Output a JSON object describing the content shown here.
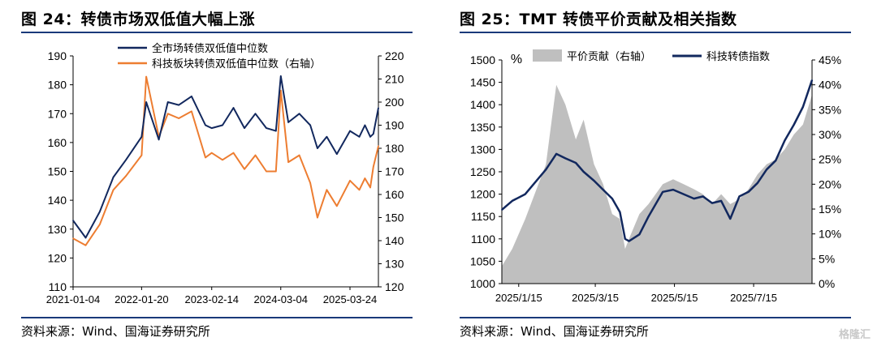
{
  "left_panel": {
    "title": "图 24：转债市场双低值大幅上涨",
    "source": "资料来源：Wind、国海证券研究所"
  },
  "right_panel": {
    "title": "图 25：TMT 转债平价贡献及相关指数",
    "source": "资料来源：Wind、国海证券研究所"
  },
  "watermark": "格隆汇",
  "chart_data": [
    {
      "type": "line",
      "title": "图 24：转债市场双低值大幅上涨",
      "x_tick_labels": [
        "2021-01-04",
        "2022-01-20",
        "2023-02-14",
        "2024-03-04",
        "2025-03-24"
      ],
      "ylim_left": [
        110,
        190
      ],
      "y_ticks_left": [
        110,
        120,
        130,
        140,
        150,
        160,
        170,
        180,
        190
      ],
      "ylim_right": [
        120,
        220
      ],
      "y_ticks_right": [
        120,
        130,
        140,
        150,
        160,
        170,
        180,
        190,
        200,
        210,
        220
      ],
      "grid": false,
      "legend_position": "top",
      "colors": {
        "series_1": "#12285e",
        "series_2": "#ed7d31"
      },
      "series": [
        {
          "name": "全市场转债双低值中位数",
          "axis": "left",
          "x": [
            "2021-01-04",
            "2021-03-15",
            "2021-06-01",
            "2021-08-16",
            "2021-10-25",
            "2022-01-20",
            "2022-02-15",
            "2022-04-26",
            "2022-06-15",
            "2022-08-15",
            "2022-10-25",
            "2023-01-10",
            "2023-02-14",
            "2023-04-15",
            "2023-06-15",
            "2023-08-15",
            "2023-10-15",
            "2023-12-15",
            "2024-02-06",
            "2024-03-04",
            "2024-04-15",
            "2024-06-15",
            "2024-08-15",
            "2024-09-24",
            "2024-11-15",
            "2025-01-10",
            "2025-03-24",
            "2025-05-15",
            "2025-06-15",
            "2025-07-15",
            "2025-08-01",
            "2025-08-29"
          ],
          "values": [
            133,
            127,
            136,
            148,
            154,
            162,
            174,
            161,
            174,
            173,
            176,
            166,
            165,
            166,
            172,
            165,
            170,
            165,
            164,
            183,
            167,
            170,
            166,
            158,
            162,
            156,
            164,
            162,
            166,
            162,
            163,
            172
          ]
        },
        {
          "name": "科技板块转债双低值中位数（右轴）",
          "axis": "right",
          "x": [
            "2021-01-04",
            "2021-03-15",
            "2021-06-01",
            "2021-08-16",
            "2021-10-25",
            "2022-01-20",
            "2022-02-15",
            "2022-04-26",
            "2022-06-15",
            "2022-08-15",
            "2022-10-25",
            "2023-01-10",
            "2023-02-14",
            "2023-04-15",
            "2023-06-15",
            "2023-08-15",
            "2023-10-15",
            "2023-12-15",
            "2024-02-06",
            "2024-03-04",
            "2024-04-15",
            "2024-06-15",
            "2024-08-15",
            "2024-09-24",
            "2024-11-15",
            "2025-01-10",
            "2025-03-24",
            "2025-05-15",
            "2025-06-15",
            "2025-07-15",
            "2025-08-01",
            "2025-08-29"
          ],
          "values": [
            141,
            138,
            147,
            162,
            168,
            177,
            211,
            185,
            195,
            193,
            196,
            176,
            178,
            175,
            178,
            171,
            177,
            170,
            170,
            205,
            174,
            177,
            165,
            150,
            162,
            155,
            166,
            162,
            167,
            163,
            172,
            181
          ]
        }
      ]
    },
    {
      "type": "line",
      "title": "图 25：TMT 转债平价贡献及相关指数",
      "x_tick_labels": [
        "2025/1/15",
        "2025/3/15",
        "2025/5/15",
        "2025/7/15"
      ],
      "ylim_left": [
        1000,
        1500
      ],
      "y_ticks_left": [
        1000,
        1050,
        1100,
        1150,
        1200,
        1250,
        1300,
        1350,
        1400,
        1450,
        1500
      ],
      "ylim_right": [
        0,
        45
      ],
      "y_ticks_right": [
        "0%",
        "5%",
        "10%",
        "15%",
        "20%",
        "25%",
        "30%",
        "35%",
        "40%",
        "45%"
      ],
      "left_axis_unit": "%",
      "grid": false,
      "legend_position": "top",
      "colors": {
        "area": "#bfbfbf",
        "line": "#12285e"
      },
      "series": [
        {
          "name": "平价贡献（右轴）",
          "type": "area",
          "axis": "right",
          "x": [
            "2025-01-02",
            "2025-01-10",
            "2025-01-20",
            "2025-02-05",
            "2025-02-13",
            "2025-02-20",
            "2025-02-28",
            "2025-03-06",
            "2025-03-14",
            "2025-03-21",
            "2025-03-28",
            "2025-04-03",
            "2025-04-07",
            "2025-04-10",
            "2025-04-18",
            "2025-04-25",
            "2025-05-06",
            "2025-05-14",
            "2025-05-22",
            "2025-05-30",
            "2025-06-06",
            "2025-06-13",
            "2025-06-20",
            "2025-06-27",
            "2025-07-04",
            "2025-07-11",
            "2025-07-18",
            "2025-07-25",
            "2025-08-01",
            "2025-08-08",
            "2025-08-15",
            "2025-08-22",
            "2025-08-29"
          ],
          "values": [
            3.5,
            7,
            13,
            24,
            40,
            36,
            29,
            33,
            24,
            20,
            14,
            13,
            7,
            9,
            14,
            16,
            20,
            21,
            20,
            19,
            18,
            16,
            18,
            16,
            17,
            19,
            22,
            24,
            25,
            27,
            30,
            32,
            38
          ]
        },
        {
          "name": "科技转债指数",
          "type": "line",
          "axis": "left",
          "x": [
            "2025-01-02",
            "2025-01-10",
            "2025-01-20",
            "2025-02-05",
            "2025-02-13",
            "2025-02-20",
            "2025-02-28",
            "2025-03-06",
            "2025-03-14",
            "2025-03-21",
            "2025-03-28",
            "2025-04-03",
            "2025-04-07",
            "2025-04-10",
            "2025-04-18",
            "2025-04-25",
            "2025-05-06",
            "2025-05-14",
            "2025-05-22",
            "2025-05-30",
            "2025-06-06",
            "2025-06-13",
            "2025-06-20",
            "2025-06-27",
            "2025-07-04",
            "2025-07-11",
            "2025-07-18",
            "2025-07-25",
            "2025-08-01",
            "2025-08-08",
            "2025-08-15",
            "2025-08-22",
            "2025-08-29"
          ],
          "values": [
            1165,
            1185,
            1200,
            1255,
            1290,
            1280,
            1270,
            1250,
            1230,
            1210,
            1190,
            1160,
            1100,
            1095,
            1110,
            1150,
            1205,
            1210,
            1200,
            1190,
            1195,
            1180,
            1185,
            1145,
            1195,
            1205,
            1225,
            1255,
            1275,
            1320,
            1355,
            1395,
            1455
          ]
        }
      ]
    }
  ]
}
